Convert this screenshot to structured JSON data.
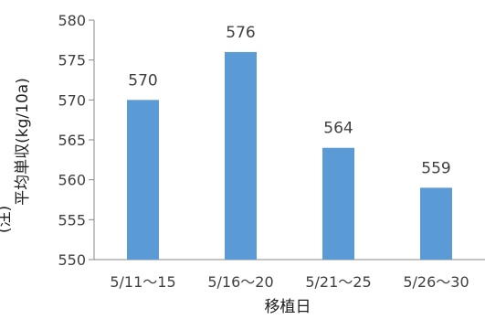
{
  "chart_data": {
    "type": "bar",
    "categories": [
      "5/11〜15",
      "5/16〜20",
      "5/21〜25",
      "5/26〜30"
    ],
    "values": [
      570,
      576,
      564,
      559
    ],
    "data_labels": [
      "570",
      "576",
      "564",
      "559"
    ],
    "xlabel": "移植日",
    "ylabel": "平均単収(kg/10a)",
    "ylabel_prefix": "(注)",
    "ylim": [
      550,
      580
    ],
    "yticks": [
      550,
      555,
      560,
      565,
      570,
      575,
      580
    ],
    "bar_color": "#5b9bd5",
    "grid": false,
    "legend": "none"
  }
}
